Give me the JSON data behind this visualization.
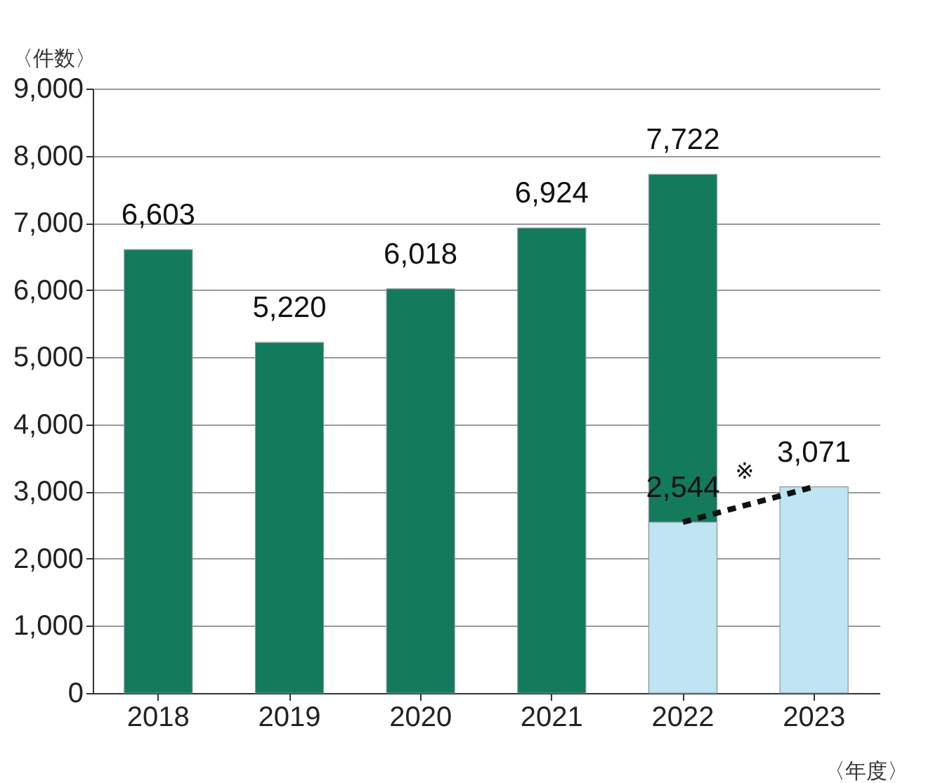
{
  "chart_data": {
    "type": "bar",
    "xlabel": "〈年度〉",
    "ylabel": "〈件数〉",
    "categories": [
      "2018",
      "2019",
      "2020",
      "2021",
      "2022",
      "2023"
    ],
    "series": [
      {
        "color": "#137a5c",
        "values": [
          6603,
          5220,
          6018,
          6924,
          7722,
          null
        ],
        "value_labels": [
          "6,603",
          "5,220",
          "6,018",
          "6,924",
          "7,722",
          null
        ]
      },
      {
        "color": "#bfe4f2",
        "values": [
          null,
          null,
          null,
          null,
          2544,
          3071
        ],
        "value_labels": [
          null,
          null,
          null,
          null,
          "2,544",
          "3,071"
        ]
      },
      {
        "type": "line",
        "color": "#111111",
        "line_style": "dashed",
        "values": [
          null,
          null,
          null,
          null,
          2544,
          3071
        ],
        "value_labels": [
          null,
          null,
          null,
          null,
          null,
          null
        ]
      }
    ],
    "annotations": [
      {
        "text": "※",
        "x": "2022",
        "y": 2544
      }
    ],
    "ylim": [
      0,
      9000
    ],
    "yticks": [
      {
        "value": 0,
        "label": "0"
      },
      {
        "value": 1000,
        "label": "1,000"
      },
      {
        "value": 2000,
        "label": "2,000"
      },
      {
        "value": 3000,
        "label": "3,000"
      },
      {
        "value": 4000,
        "label": "4,000"
      },
      {
        "value": 5000,
        "label": "5,000"
      },
      {
        "value": 6000,
        "label": "6,000"
      },
      {
        "value": 7000,
        "label": "7,000"
      },
      {
        "value": 8000,
        "label": "8,000"
      },
      {
        "value": 9000,
        "label": "9,000"
      }
    ],
    "grid": "y"
  }
}
